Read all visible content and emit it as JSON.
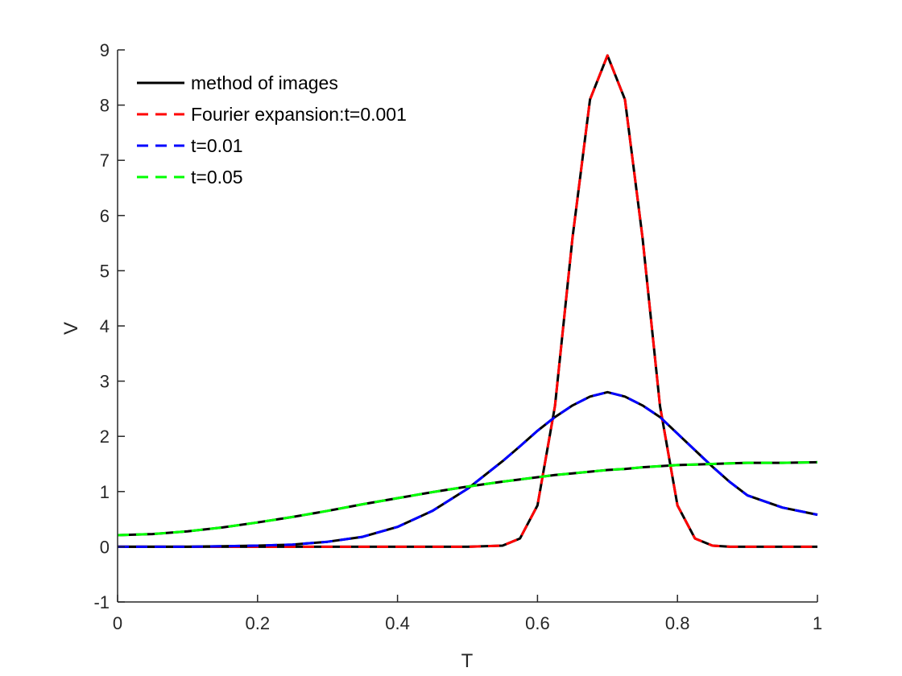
{
  "chart_data": {
    "type": "line",
    "xlabel": "T",
    "ylabel": "V",
    "xlim": [
      0,
      1
    ],
    "ylim": [
      -1,
      9
    ],
    "xticks": [
      0,
      0.2,
      0.4,
      0.6,
      0.8,
      1
    ],
    "xtick_labels": [
      "0",
      "0.2",
      "0.4",
      "0.6",
      "0.8",
      "1"
    ],
    "yticks": [
      -1,
      0,
      1,
      2,
      3,
      4,
      5,
      6,
      7,
      8,
      9
    ],
    "ytick_labels": [
      "-1",
      "0",
      "1",
      "2",
      "3",
      "4",
      "5",
      "6",
      "7",
      "8",
      "9"
    ],
    "grid": false,
    "legend_position": "top-left",
    "legend_entries": [
      {
        "label": "method of images",
        "color": "#000000",
        "style": "solid"
      },
      {
        "label": "Fourier expansion:t=0.001",
        "color": "#ff0000",
        "style": "dashed"
      },
      {
        "label": "t=0.01",
        "color": "#0000ff",
        "style": "dashed"
      },
      {
        "label": "t=0.05",
        "color": "#00ff00",
        "style": "dashed"
      }
    ],
    "x": [
      0,
      0.05,
      0.1,
      0.15,
      0.2,
      0.25,
      0.3,
      0.35,
      0.4,
      0.45,
      0.5,
      0.55,
      0.575,
      0.6,
      0.625,
      0.65,
      0.675,
      0.7,
      0.725,
      0.75,
      0.775,
      0.8,
      0.825,
      0.85,
      0.875,
      0.9,
      0.95,
      1.0
    ],
    "series": [
      {
        "color": "#ff0000",
        "values": [
          0,
          0,
          0,
          0,
          0,
          0,
          0,
          0,
          0,
          0,
          0,
          0.02,
          0.15,
          0.75,
          2.55,
          5.6,
          8.1,
          8.9,
          8.1,
          5.6,
          2.55,
          0.75,
          0.15,
          0.02,
          0,
          0,
          0,
          0
        ]
      },
      {
        "color": "#0000ff",
        "values": [
          0,
          0,
          0,
          0.01,
          0.02,
          0.04,
          0.09,
          0.18,
          0.36,
          0.65,
          1.05,
          1.55,
          1.82,
          2.1,
          2.35,
          2.56,
          2.72,
          2.8,
          2.72,
          2.56,
          2.35,
          2.05,
          1.75,
          1.45,
          1.17,
          0.93,
          0.71,
          0.58
        ]
      },
      {
        "color": "#00ff00",
        "values": [
          0.21,
          0.23,
          0.28,
          0.35,
          0.44,
          0.54,
          0.65,
          0.77,
          0.88,
          0.99,
          1.09,
          1.18,
          1.22,
          1.26,
          1.3,
          1.33,
          1.36,
          1.39,
          1.41,
          1.44,
          1.46,
          1.48,
          1.49,
          1.5,
          1.51,
          1.52,
          1.52,
          1.53
        ]
      }
    ]
  }
}
